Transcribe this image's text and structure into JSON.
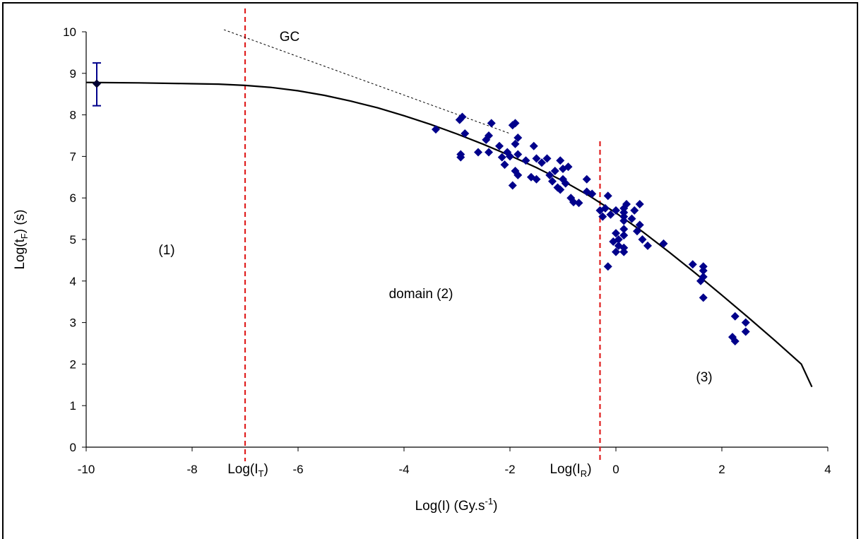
{
  "chart_data": {
    "type": "scatter",
    "xlabel": "Log(I) (Gy.s",
    "xlabel_sup": "-1",
    "xlabel_end": ")",
    "ylabel": "Log(t",
    "ylabel_sub": "F",
    "ylabel_end": ") (s)",
    "xlim": [
      -10,
      4
    ],
    "ylim": [
      0,
      10
    ],
    "x_ticks": [
      -10,
      -8,
      -6,
      -4,
      -2,
      0,
      2,
      4
    ],
    "y_ticks": [
      0,
      1,
      2,
      3,
      4,
      5,
      6,
      7,
      8,
      9,
      10
    ],
    "x_tick_labels": [
      "-10",
      "-8",
      "-6",
      "-4",
      "-2",
      "0",
      "2",
      "4"
    ],
    "y_tick_labels": [
      "0",
      "1",
      "2",
      "3",
      "4",
      "5",
      "6",
      "7",
      "8",
      "9",
      "10"
    ],
    "grid": false,
    "colors": {
      "points": "#00008B",
      "fit": "#000000",
      "thresholds": "#E02020",
      "gc": "#000000"
    },
    "threshold_lines": [
      {
        "x": -7.0,
        "label": "Log(I",
        "sub": "T",
        "end": ")"
      },
      {
        "x": -0.3,
        "label": "Log(I",
        "sub": "R",
        "end": ")"
      }
    ],
    "annotations": {
      "region1": "(1)",
      "region2": "domain (2)",
      "region3": "(3)",
      "gc": "GC"
    },
    "error_point": {
      "x": -9.8,
      "y": 8.75,
      "y_low": 8.22,
      "y_high": 9.25
    },
    "fit_curve": [
      [
        -10,
        8.78
      ],
      [
        -9,
        8.77
      ],
      [
        -8,
        8.75
      ],
      [
        -7.5,
        8.74
      ],
      [
        -7,
        8.71
      ],
      [
        -6.5,
        8.66
      ],
      [
        -6,
        8.58
      ],
      [
        -5.5,
        8.47
      ],
      [
        -5,
        8.33
      ],
      [
        -4.5,
        8.17
      ],
      [
        -4,
        7.98
      ],
      [
        -3.5,
        7.77
      ],
      [
        -3,
        7.54
      ],
      [
        -2.5,
        7.29
      ],
      [
        -2,
        7.02
      ],
      [
        -1.5,
        6.73
      ],
      [
        -1,
        6.41
      ],
      [
        -0.5,
        6.05
      ],
      [
        0,
        5.64
      ],
      [
        0.5,
        5.19
      ],
      [
        1,
        4.7
      ],
      [
        1.5,
        4.19
      ],
      [
        2,
        3.66
      ],
      [
        2.5,
        3.12
      ],
      [
        3,
        2.57
      ],
      [
        3.5,
        2.0
      ],
      [
        3.7,
        1.45
      ]
    ],
    "gc_line": [
      [
        -7.4,
        10.05
      ],
      [
        -2.0,
        7.55
      ]
    ],
    "points": [
      [
        -3.4,
        7.65
      ],
      [
        -2.95,
        7.88
      ],
      [
        -2.9,
        7.95
      ],
      [
        -2.85,
        7.55
      ],
      [
        -2.93,
        7.05
      ],
      [
        -2.93,
        6.98
      ],
      [
        -2.6,
        7.1
      ],
      [
        -2.45,
        7.4
      ],
      [
        -2.4,
        7.5
      ],
      [
        -2.35,
        7.8
      ],
      [
        -2.4,
        7.1
      ],
      [
        -2.2,
        7.25
      ],
      [
        -2.15,
        6.98
      ],
      [
        -2.1,
        6.8
      ],
      [
        -2.05,
        7.1
      ],
      [
        -2.0,
        7.0
      ],
      [
        -1.95,
        7.75
      ],
      [
        -1.9,
        7.8
      ],
      [
        -1.85,
        7.45
      ],
      [
        -1.9,
        7.3
      ],
      [
        -1.85,
        7.05
      ],
      [
        -1.9,
        6.65
      ],
      [
        -1.85,
        6.55
      ],
      [
        -1.95,
        6.3
      ],
      [
        -1.7,
        6.9
      ],
      [
        -1.6,
        6.5
      ],
      [
        -1.55,
        7.25
      ],
      [
        -1.5,
        6.95
      ],
      [
        -1.5,
        6.45
      ],
      [
        -1.4,
        6.85
      ],
      [
        -1.3,
        6.95
      ],
      [
        -1.25,
        6.55
      ],
      [
        -1.2,
        6.4
      ],
      [
        -1.15,
        6.65
      ],
      [
        -1.1,
        6.25
      ],
      [
        -1.05,
        6.9
      ],
      [
        -1.0,
        6.7
      ],
      [
        -1.0,
        6.45
      ],
      [
        -1.05,
        6.2
      ],
      [
        -0.95,
        6.35
      ],
      [
        -0.9,
        6.75
      ],
      [
        -0.85,
        6.0
      ],
      [
        -0.8,
        5.9
      ],
      [
        -0.7,
        5.88
      ],
      [
        -0.55,
        6.45
      ],
      [
        -0.55,
        6.15
      ],
      [
        -0.45,
        6.1
      ],
      [
        -0.3,
        5.7
      ],
      [
        -0.25,
        5.55
      ],
      [
        -0.2,
        5.75
      ],
      [
        -0.15,
        6.05
      ],
      [
        -0.1,
        5.6
      ],
      [
        -0.15,
        4.35
      ],
      [
        0.0,
        5.7
      ],
      [
        0.0,
        5.15
      ],
      [
        -0.05,
        4.95
      ],
      [
        0.05,
        4.85
      ],
      [
        0.0,
        4.7
      ],
      [
        0.05,
        5.0
      ],
      [
        0.15,
        4.7
      ],
      [
        0.15,
        4.8
      ],
      [
        0.15,
        5.1
      ],
      [
        0.15,
        5.25
      ],
      [
        0.15,
        5.45
      ],
      [
        0.15,
        5.55
      ],
      [
        0.15,
        5.65
      ],
      [
        0.15,
        5.75
      ],
      [
        0.2,
        5.85
      ],
      [
        0.3,
        5.5
      ],
      [
        0.35,
        5.7
      ],
      [
        0.4,
        5.2
      ],
      [
        0.45,
        5.35
      ],
      [
        0.45,
        5.85
      ],
      [
        0.5,
        5.0
      ],
      [
        0.6,
        4.85
      ],
      [
        0.9,
        4.9
      ],
      [
        1.45,
        4.4
      ],
      [
        1.65,
        4.35
      ],
      [
        1.65,
        4.25
      ],
      [
        1.65,
        4.1
      ],
      [
        1.6,
        4.0
      ],
      [
        1.65,
        3.6
      ],
      [
        2.25,
        3.15
      ],
      [
        2.2,
        2.65
      ],
      [
        2.25,
        2.55
      ],
      [
        2.45,
        3.0
      ],
      [
        2.45,
        2.78
      ]
    ]
  }
}
